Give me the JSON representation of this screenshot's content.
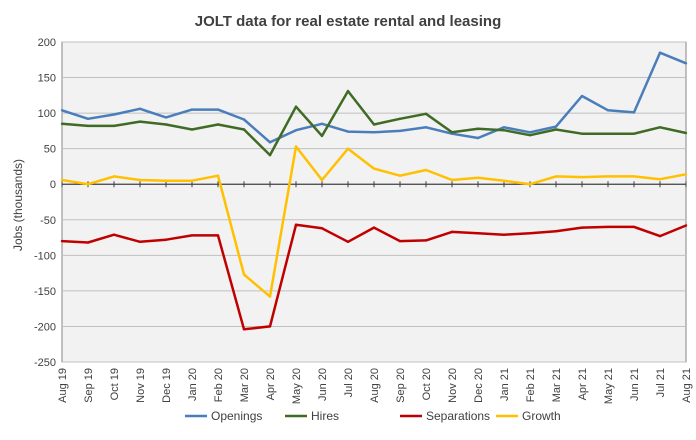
{
  "chart_data": {
    "type": "line",
    "title": "JOLT data for real estate rental and leasing",
    "xlabel": "",
    "ylabel": "Jobs (thousands)",
    "ylim": [
      -250,
      200
    ],
    "y_ticks": [
      200,
      150,
      100,
      50,
      0,
      -50,
      -100,
      -150,
      -200,
      -250
    ],
    "y_tick_labels": [
      "200",
      "150",
      "100",
      "50",
      "0",
      "-50",
      "-100",
      "-150",
      "-200",
      "-250"
    ],
    "grid": true,
    "legend_position": "bottom",
    "categories": [
      "Aug 19",
      "Sep 19",
      "Oct 19",
      "Nov 19",
      "Dec 19",
      "Jan 20",
      "Feb 20",
      "Mar 20",
      "Apr 20",
      "May 20",
      "Jun 20",
      "Jul 20",
      "Aug 20",
      "Sep 20",
      "Oct 20",
      "Nov 20",
      "Dec 20",
      "Jan 21",
      "Feb 21",
      "Mar 21",
      "Apr 21",
      "May 21",
      "Jun 21",
      "Jul 21",
      "Aug 21"
    ],
    "series": [
      {
        "name": "Openings",
        "color": "#4a7ebb",
        "values": [
          104,
          92,
          98,
          106,
          94,
          105,
          105,
          91,
          59,
          76,
          85,
          74,
          73,
          75,
          80,
          71,
          65,
          80,
          73,
          81,
          124,
          104,
          101,
          185,
          170
        ]
      },
      {
        "name": "Hires",
        "color": "#3f6b24",
        "values": [
          85,
          82,
          82,
          88,
          84,
          77,
          84,
          77,
          41,
          109,
          68,
          131,
          84,
          92,
          99,
          73,
          78,
          76,
          69,
          77,
          71,
          71,
          71,
          80,
          72
        ]
      },
      {
        "name": "Separations",
        "color": "#c00000",
        "values": [
          -80,
          -82,
          -71,
          -81,
          -78,
          -72,
          -72,
          -204,
          -200,
          -57,
          -62,
          -81,
          -61,
          -80,
          -79,
          -67,
          -69,
          -71,
          -69,
          -66,
          -61,
          -60,
          -60,
          -73,
          -58
        ]
      },
      {
        "name": "Growth",
        "color": "#ffc000",
        "values": [
          6,
          0,
          11,
          6,
          5,
          5,
          12,
          -127,
          -158,
          53,
          6,
          50,
          22,
          12,
          20,
          6,
          9,
          5,
          0,
          11,
          10,
          11,
          11,
          7,
          14
        ]
      }
    ]
  }
}
